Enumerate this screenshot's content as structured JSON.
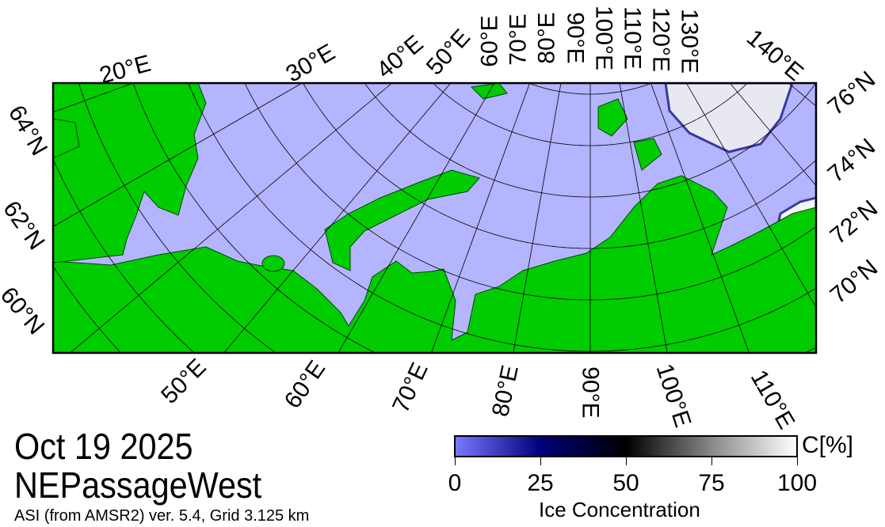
{
  "title": {
    "date": "Oct 19 2025",
    "region": "NEPassageWest",
    "source": "ASI (from AMSR2) ver. 5.4,  Grid 3.125 km"
  },
  "colorbar": {
    "title": "Ice Concentration",
    "unit": "C[%]",
    "ticks": [
      "0",
      "25",
      "50",
      "75",
      "100"
    ],
    "colors": [
      "#7878ff",
      "#00007a",
      "#000000",
      "#888888",
      "#ffffff"
    ]
  },
  "colors": {
    "land": "#00cc00",
    "open_water": "#b4b4ff",
    "grid": "#000000"
  },
  "graticule": {
    "top_lon_labels": [
      "20°E",
      "30°E",
      "40°E",
      "50°E",
      "60°E",
      "70°E",
      "80°E",
      "90°E",
      "100°E",
      "110°E",
      "120°E",
      "130°E",
      "140°E"
    ],
    "bottom_lon_labels": [
      "50°E",
      "60°E",
      "70°E",
      "80°E",
      "90°E",
      "100°E",
      "110°E"
    ],
    "left_lat_labels": [
      "64°N",
      "62°N",
      "60°N"
    ],
    "right_lat_labels": [
      "76°N",
      "74°N",
      "72°N",
      "70°N"
    ]
  }
}
